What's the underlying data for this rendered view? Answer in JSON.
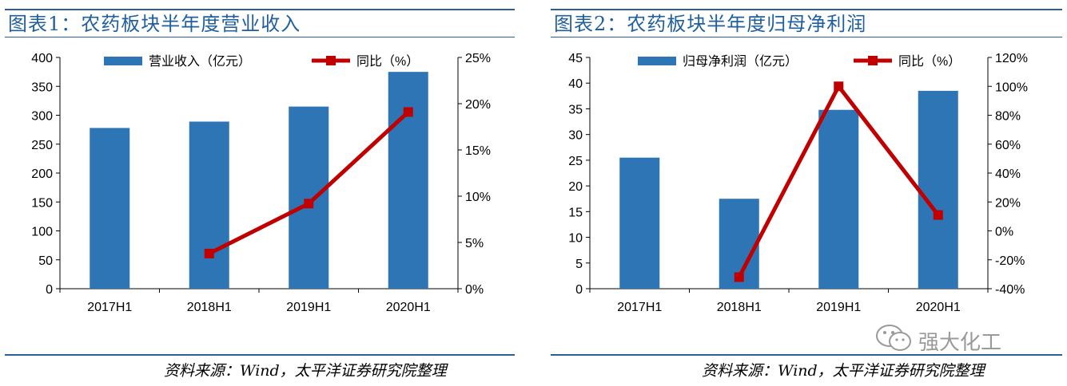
{
  "left": {
    "title": "图表1：农药板块半年度营业收入",
    "source": "资料来源：Wind，太平洋证券研究院整理"
  },
  "right": {
    "title": "图表2：农药板块半年度归母净利润",
    "source": "资料来源：Wind，太平洋证券研究院整理"
  },
  "watermark": {
    "text": "强大化工",
    "icon": "wechat-icon"
  },
  "colors": {
    "bar": "#2e75b6",
    "line": "#c00000",
    "title": "#1f5f9f",
    "rule": "#2a5f9a"
  },
  "chart_data": [
    {
      "type": "bar",
      "categories": [
        "2017H1",
        "2018H1",
        "2019H1",
        "2020H1"
      ],
      "series": [
        {
          "name": "营业收入（亿元）",
          "type": "bar",
          "axis": "left",
          "values": [
            278,
            289,
            315,
            375
          ]
        },
        {
          "name": "同比（%）",
          "type": "line",
          "axis": "right",
          "values": [
            null,
            3.8,
            9.2,
            19.1
          ]
        }
      ],
      "ylim_left": [
        0,
        400
      ],
      "yticks_left": [
        "0",
        "50",
        "100",
        "150",
        "200",
        "250",
        "300",
        "350",
        "400"
      ],
      "ylim_right": [
        0,
        25
      ],
      "yticks_right": [
        "0%",
        "5%",
        "10%",
        "15%",
        "20%",
        "25%"
      ],
      "grid": false,
      "legend": "top"
    },
    {
      "type": "bar",
      "categories": [
        "2017H1",
        "2018H1",
        "2019H1",
        "2020H1"
      ],
      "series": [
        {
          "name": "归母净利润（亿元）",
          "type": "bar",
          "axis": "left",
          "values": [
            25.5,
            17.5,
            34.8,
            38.5
          ]
        },
        {
          "name": "同比（%）",
          "type": "line",
          "axis": "right",
          "values": [
            null,
            -32,
            100,
            11
          ]
        }
      ],
      "ylim_left": [
        0,
        45
      ],
      "yticks_left": [
        "0",
        "5",
        "10",
        "15",
        "20",
        "25",
        "30",
        "35",
        "40",
        "45"
      ],
      "ylim_right": [
        -40,
        120
      ],
      "yticks_right": [
        "-40%",
        "-20%",
        "0%",
        "20%",
        "40%",
        "60%",
        "80%",
        "100%",
        "120%"
      ],
      "grid": false,
      "legend": "top"
    }
  ]
}
